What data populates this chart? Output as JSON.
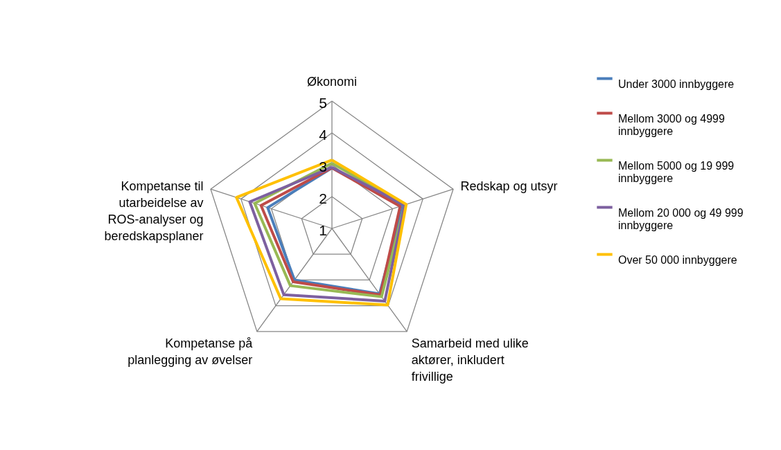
{
  "chart_data": {
    "type": "radar",
    "categories": [
      "Økonomi",
      "Redskap og utsyr",
      "Samarbeid med ulike aktører, inkludert frivillige",
      "Kompetanse på planlegging av øvelser",
      "Kompetanse til utarbeidelse av ROS-analyser og beredskapsplaner"
    ],
    "ylim": [
      1,
      5
    ],
    "yticks": [
      1,
      2,
      3,
      4,
      5
    ],
    "grid": true,
    "legend": "right",
    "series": [
      {
        "name": "Under 3000 innbyggere",
        "color": "#4a7ebb",
        "values": [
          2.9,
          3.35,
          3.54,
          3.0,
          3.12
        ]
      },
      {
        "name": "Mellom 3000 og 4999 innbyggere",
        "color": "#be4b48",
        "values": [
          2.9,
          3.25,
          3.58,
          3.07,
          3.34
        ]
      },
      {
        "name": "Mellom 5000 og 19 999 innbyggere",
        "color": "#98b954",
        "values": [
          3.05,
          3.4,
          3.65,
          3.22,
          3.55
        ]
      },
      {
        "name": "Mellom 20 000 og 49 999 innbyggere",
        "color": "#7d60a0",
        "values": [
          2.92,
          3.4,
          3.82,
          3.57,
          3.71
        ]
      },
      {
        "name": "Over 50 000 innbyggere",
        "color": "#ffc000",
        "values": [
          3.15,
          3.45,
          3.97,
          3.73,
          4.15
        ]
      }
    ]
  }
}
